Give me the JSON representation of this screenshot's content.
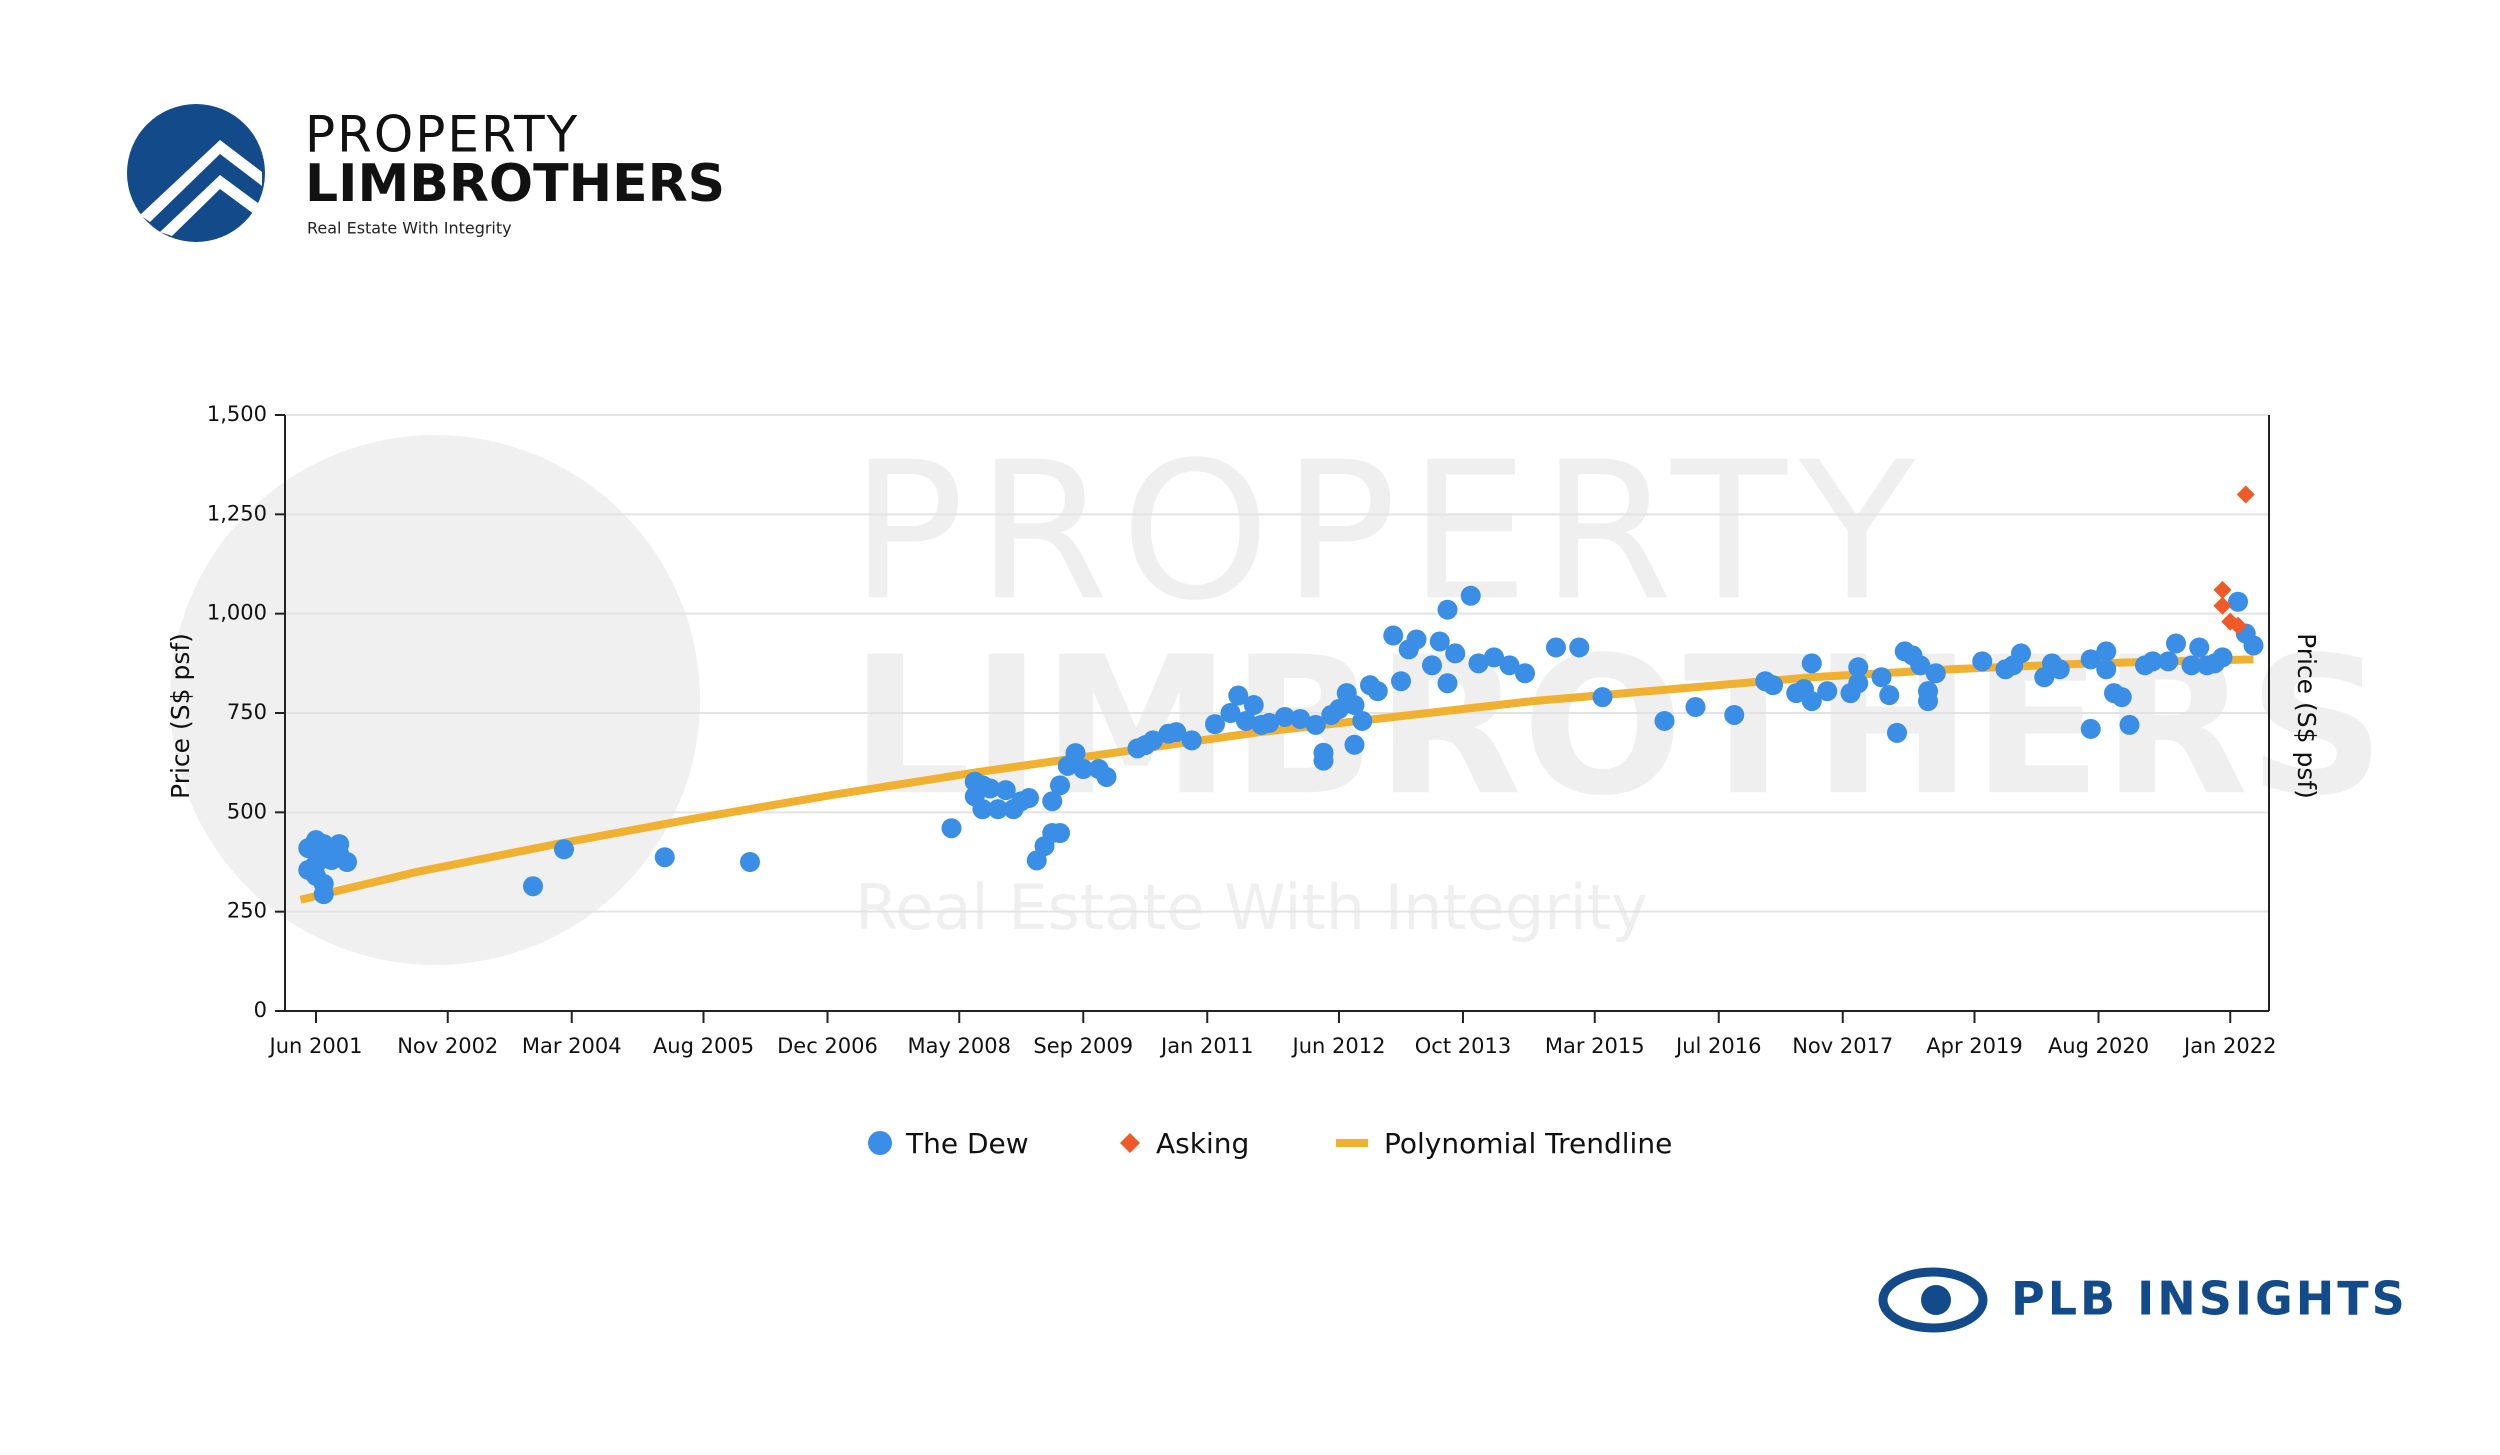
{
  "header": {
    "brand_top": "PROPERTY",
    "brand_bottom": "LIMBROTHERS",
    "tagline": "Real Estate With Integrity"
  },
  "footer": {
    "brand": "PLB INSIGHTS"
  },
  "chart_data": {
    "type": "scatter",
    "ylabel": "Price (S$ psf)",
    "y2label": "Price (S$ psf)",
    "xlim": [
      "2001-02",
      "2022-06"
    ],
    "xticks": [
      {
        "value": "2001-06",
        "label": "Jun 2001"
      },
      {
        "value": "2002-11",
        "label": "Nov 2002"
      },
      {
        "value": "2004-03",
        "label": "Mar 2004"
      },
      {
        "value": "2005-08",
        "label": "Aug 2005"
      },
      {
        "value": "2006-12",
        "label": "Dec 2006"
      },
      {
        "value": "2008-05",
        "label": "May 2008"
      },
      {
        "value": "2009-09",
        "label": "Sep 2009"
      },
      {
        "value": "2011-01",
        "label": "Jan 2011"
      },
      {
        "value": "2012-06",
        "label": "Jun 2012"
      },
      {
        "value": "2013-10",
        "label": "Oct 2013"
      },
      {
        "value": "2015-03",
        "label": "Mar 2015"
      },
      {
        "value": "2016-07",
        "label": "Jul 2016"
      },
      {
        "value": "2017-11",
        "label": "Nov 2017"
      },
      {
        "value": "2019-04",
        "label": "Apr 2019"
      },
      {
        "value": "2020-08",
        "label": "Aug 2020"
      },
      {
        "value": "2022-01",
        "label": "Jan 2022"
      }
    ],
    "ylim": [
      0,
      1500
    ],
    "yticks": [
      0,
      250,
      500,
      750,
      {
        "value": 1000,
        "label": "1,000"
      },
      {
        "value": 1250,
        "label": "1,250"
      },
      {
        "value": 1500,
        "label": "1,500"
      }
    ],
    "grid": true,
    "legend": "bottom",
    "series": [
      {
        "name": "The Dew",
        "color": "#3a8ee6",
        "marker": "circle",
        "x": [
          "2001-05",
          "2001-05",
          "2001-06",
          "2001-06",
          "2001-06",
          "2001-06",
          "2001-07",
          "2001-07",
          "2001-07",
          "2001-08",
          "2001-08",
          "2001-09",
          "2001-09",
          "2001-10",
          "2003-10",
          "2004-02",
          "2005-03",
          "2006-02",
          "2008-04",
          "2008-07",
          "2008-07",
          "2008-08",
          "2008-08",
          "2008-08",
          "2008-09",
          "2008-10",
          "2008-11",
          "2008-12",
          "2009-01",
          "2009-02",
          "2009-03",
          "2009-04",
          "2009-05",
          "2009-05",
          "2009-06",
          "2009-06",
          "2009-07",
          "2009-08",
          "2009-09",
          "2009-11",
          "2009-12",
          "2010-04",
          "2010-05",
          "2010-06",
          "2010-08",
          "2010-09",
          "2010-11",
          "2011-02",
          "2011-04",
          "2011-05",
          "2011-06",
          "2011-07",
          "2011-08",
          "2011-09",
          "2011-11",
          "2012-01",
          "2012-03",
          "2012-04",
          "2012-04",
          "2012-05",
          "2012-06",
          "2012-07",
          "2012-08",
          "2012-08",
          "2012-09",
          "2012-10",
          "2012-11",
          "2013-01",
          "2013-02",
          "2013-03",
          "2013-04",
          "2013-06",
          "2013-07",
          "2013-08",
          "2013-08",
          "2013-09",
          "2013-11",
          "2013-12",
          "2014-02",
          "2014-04",
          "2014-06",
          "2014-10",
          "2015-01",
          "2015-04",
          "2015-12",
          "2016-04",
          "2016-09",
          "2017-01",
          "2017-02",
          "2017-05",
          "2017-06",
          "2017-07",
          "2017-07",
          "2017-09",
          "2017-12",
          "2018-01",
          "2018-01",
          "2018-04",
          "2018-05",
          "2018-06",
          "2018-07",
          "2018-08",
          "2018-09",
          "2018-10",
          "2018-10",
          "2018-11",
          "2019-05",
          "2019-08",
          "2019-09",
          "2019-10",
          "2020-01",
          "2020-02",
          "2020-03",
          "2020-07",
          "2020-07",
          "2020-09",
          "2020-09",
          "2020-10",
          "2020-11",
          "2020-12",
          "2021-02",
          "2021-03",
          "2021-05",
          "2021-06",
          "2021-08",
          "2021-09",
          "2021-10",
          "2021-11",
          "2021-12",
          "2022-02",
          "2022-03",
          "2022-04"
        ],
        "values": [
          410,
          355,
          430,
          400,
          370,
          340,
          320,
          294,
          420,
          380,
          410,
          420,
          395,
          375,
          314,
          407,
          387,
          375,
          460,
          577,
          540,
          508,
          508,
          568,
          560,
          508,
          556,
          508,
          528,
          536,
          379,
          415,
          448,
          528,
          448,
          568,
          617,
          649,
          609,
          609,
          589,
          661,
          669,
          681,
          698,
          702,
          681,
          722,
          750,
          794,
          730,
          770,
          720,
          725,
          740,
          735,
          720,
          630,
          650,
          745,
          760,
          800,
          670,
          770,
          730,
          820,
          805,
          945,
          830,
          910,
          935,
          870,
          930,
          1010,
          825,
          900,
          1045,
          875,
          890,
          870,
          850,
          915,
          915,
          790,
          730,
          765,
          745,
          830,
          820,
          800,
          810,
          780,
          875,
          805,
          800,
          825,
          865,
          840,
          795,
          700,
          905,
          895,
          870,
          780,
          805,
          850,
          880,
          860,
          870,
          900,
          840,
          875,
          860,
          710,
          885,
          860,
          905,
          800,
          790,
          720,
          870,
          880,
          880,
          925,
          870,
          915,
          870,
          875,
          890,
          1030,
          950,
          920
        ]
      },
      {
        "name": "Asking",
        "color": "#f05a28",
        "marker": "diamond",
        "x": [
          "2021-12",
          "2021-12",
          "2022-01",
          "2022-02",
          "2022-03"
        ],
        "values": [
          1060,
          1020,
          980,
          970,
          1300
        ]
      },
      {
        "name": "Polynomial Trendline",
        "color": "#f0b030",
        "marker": "line",
        "x": [
          "2001-04",
          "2002-07",
          "2004-01",
          "2005-07",
          "2007-01",
          "2008-07",
          "2010-01",
          "2011-07",
          "2013-01",
          "2014-07",
          "2016-01",
          "2017-07",
          "2019-01",
          "2020-07",
          "2022-04"
        ],
        "values": [
          280,
          350,
          420,
          485,
          545,
          600,
          650,
          700,
          740,
          780,
          810,
          840,
          860,
          875,
          885
        ]
      }
    ]
  }
}
